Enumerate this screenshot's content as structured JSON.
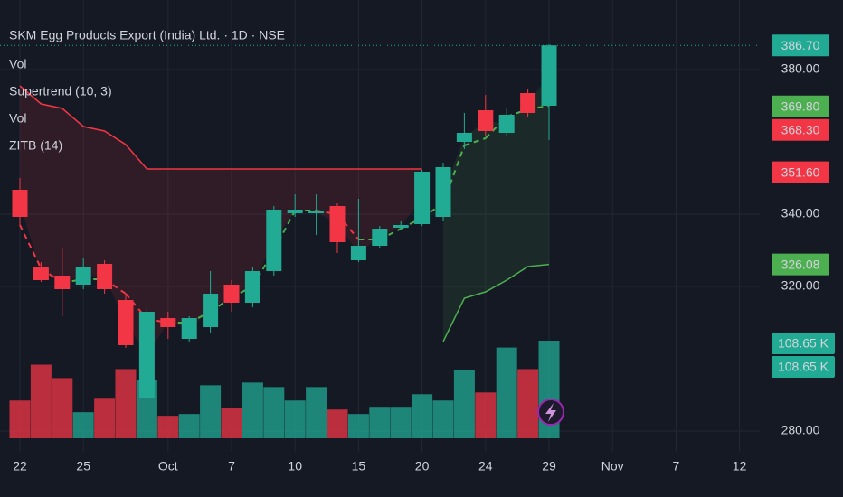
{
  "chart_data": {
    "type": "candlestick",
    "title": "SKM Egg Products Export (India) Ltd. · 1D · NSE",
    "legend_items": [
      "Vol",
      "Supertrend (10, 3)",
      "Vol",
      "ZITB (14)"
    ],
    "categories": [
      "22",
      null,
      null,
      "25",
      null,
      null,
      null,
      "Oct",
      null,
      null,
      "7",
      null,
      null,
      "10",
      null,
      null,
      "15",
      null,
      null,
      "20",
      null,
      null,
      "24",
      null,
      null,
      "29",
      null,
      null,
      "Nov",
      null,
      null,
      "7",
      null,
      null,
      "12"
    ],
    "open": [
      346.75,
      325.5,
      323,
      320.5,
      326.25,
      316.25,
      289.25,
      311.25,
      305.5,
      308.75,
      320.5,
      315.5,
      324.25,
      340.25,
      340.25,
      342.25,
      327.25,
      331.25,
      336.25,
      337.25,
      339.25,
      360,
      368.75,
      362.5,
      373.5,
      370,
      null,
      null,
      null,
      null,
      null,
      null,
      null,
      null,
      null
    ],
    "high": [
      350,
      326.75,
      330.5,
      328,
      327.25,
      318,
      314.25,
      313,
      311.75,
      324.25,
      321.75,
      325.5,
      342.25,
      345.5,
      345.5,
      343,
      344.25,
      336.75,
      338,
      352.25,
      354.25,
      368,
      373,
      369.25,
      374.75,
      387,
      null,
      null,
      null,
      null,
      null,
      null,
      null,
      null,
      null
    ],
    "low": [
      336.75,
      321.25,
      311.75,
      319.25,
      318,
      303,
      288,
      305.5,
      304.75,
      307.25,
      313,
      314.25,
      323,
      339.25,
      334.25,
      329.25,
      326.75,
      330.5,
      335.5,
      336.75,
      338,
      358,
      361.75,
      361.75,
      366.75,
      360.5,
      null,
      null,
      null,
      null,
      null,
      null,
      null,
      null,
      null
    ],
    "close": [
      339.25,
      321.75,
      319.25,
      325.5,
      319.25,
      303.75,
      313,
      308.75,
      311.25,
      318,
      315.5,
      324.25,
      341.25,
      341.25,
      341,
      332.25,
      331.25,
      336,
      337,
      351.75,
      353,
      362.5,
      363,
      367.5,
      368,
      386.7,
      null,
      null,
      null,
      null,
      null,
      null,
      null,
      null,
      null
    ],
    "volume": [
      42,
      82,
      67,
      29,
      45,
      77,
      65,
      25,
      27,
      59,
      34,
      62,
      57,
      42,
      57,
      32,
      27,
      35,
      35,
      49,
      42,
      76,
      51,
      101,
      77,
      108.65,
      null,
      null,
      null,
      null,
      null,
      null,
      null,
      null,
      null
    ],
    "supertrend_upper": [
      375.5,
      370.5,
      369.25,
      364.25,
      363,
      359.25,
      352.5,
      352.5,
      352.5,
      352.5,
      352.5,
      352.5,
      352.5,
      352.5,
      352.5,
      352.5,
      352.5,
      352.5,
      352.5,
      352.5,
      null,
      null,
      null,
      null,
      null,
      null,
      null,
      null,
      null,
      null,
      null,
      null,
      null,
      null,
      null
    ],
    "supertrend_lower": [
      null,
      null,
      null,
      null,
      null,
      null,
      null,
      null,
      null,
      null,
      null,
      null,
      null,
      null,
      null,
      null,
      null,
      null,
      null,
      null,
      304.75,
      316.75,
      318.5,
      321.75,
      325.5,
      326.08,
      null,
      null,
      null,
      null,
      null,
      null,
      null,
      null,
      null
    ],
    "zitb": [
      337,
      325,
      321,
      322,
      322,
      318,
      311,
      310,
      310,
      313,
      317,
      320,
      330,
      341,
      341,
      340,
      333,
      333,
      336,
      339,
      343,
      359,
      361,
      367,
      369,
      370,
      null,
      null,
      null,
      null,
      null,
      null,
      null,
      null,
      null
    ],
    "up_color": "#22ab94",
    "down_color": "#f23645",
    "ylim": [
      276.75,
      399.25
    ],
    "yticks": [
      {
        "value": 380,
        "label": "380.00"
      },
      {
        "value": 340,
        "label": "340.00"
      },
      {
        "value": 320,
        "label": "320.00"
      },
      {
        "value": 280,
        "label": "280.00"
      }
    ],
    "price_labels": [
      {
        "value": 386.7,
        "label": "386.70",
        "color": "#22ab94"
      },
      {
        "value": 369.8,
        "label": "369.80",
        "color": "#4caf50"
      },
      {
        "value": 368.3,
        "label": "368.30",
        "color": "#f23645"
      },
      {
        "value": 351.6,
        "label": "351.60",
        "color": "#f23645"
      },
      {
        "value": 326.08,
        "label": "326.08",
        "color": "#4caf50"
      }
    ],
    "volume_labels": [
      {
        "value": 108.65,
        "label": "108.65 K",
        "color": "#22ab94"
      },
      {
        "value": 108.65,
        "label": "108.65 K",
        "color": "#22ab94"
      }
    ],
    "grid": true
  }
}
